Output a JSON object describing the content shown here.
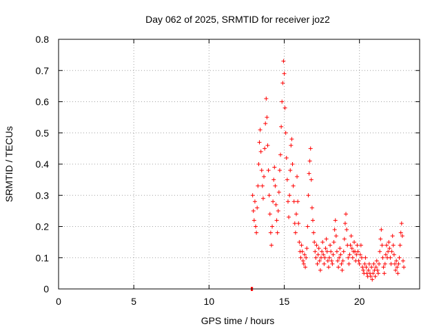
{
  "chart_data": {
    "type": "scatter",
    "title": "Day 062 of 2025, SRMTID for receiver joz2",
    "xlabel": "GPS time / hours",
    "ylabel": "SRMTID / TECUs",
    "xlim": [
      0,
      24
    ],
    "ylim": [
      0,
      0.8
    ],
    "x_ticks": [
      0,
      5,
      10,
      15,
      20
    ],
    "x_tick_labels": [
      "0",
      "5",
      "10",
      "15",
      "20"
    ],
    "y_ticks": [
      0,
      0.1,
      0.2,
      0.3,
      0.4,
      0.5,
      0.6,
      0.7,
      0.8
    ],
    "y_tick_labels": [
      "0",
      "0.1",
      "0.2",
      "0.3",
      "0.4",
      "0.5",
      "0.6",
      "0.7",
      "0.8"
    ],
    "grid": true,
    "marker": "+",
    "colors": {
      "series": "#ff0000",
      "grid": "#a0a0a0",
      "axis": "#000000"
    },
    "series": [
      {
        "name": "SRMTID",
        "points": [
          [
            12.8,
            0.0
          ],
          [
            12.85,
            0.0
          ],
          [
            12.9,
            0.0
          ],
          [
            12.9,
            0.3
          ],
          [
            12.95,
            0.25
          ],
          [
            13.0,
            0.22
          ],
          [
            13.05,
            0.28
          ],
          [
            13.1,
            0.2
          ],
          [
            13.15,
            0.18
          ],
          [
            13.2,
            0.26
          ],
          [
            13.25,
            0.33
          ],
          [
            13.3,
            0.4
          ],
          [
            13.35,
            0.47
          ],
          [
            13.4,
            0.51
          ],
          [
            13.45,
            0.44
          ],
          [
            13.5,
            0.38
          ],
          [
            13.55,
            0.33
          ],
          [
            13.6,
            0.29
          ],
          [
            13.65,
            0.36
          ],
          [
            13.7,
            0.45
          ],
          [
            13.75,
            0.53
          ],
          [
            13.8,
            0.61
          ],
          [
            13.85,
            0.55
          ],
          [
            13.9,
            0.46
          ],
          [
            13.95,
            0.38
          ],
          [
            14.0,
            0.3
          ],
          [
            14.05,
            0.24
          ],
          [
            14.1,
            0.18
          ],
          [
            14.15,
            0.14
          ],
          [
            14.2,
            0.2
          ],
          [
            14.25,
            0.28
          ],
          [
            14.3,
            0.35
          ],
          [
            14.35,
            0.39
          ],
          [
            14.4,
            0.33
          ],
          [
            14.45,
            0.27
          ],
          [
            14.5,
            0.22
          ],
          [
            14.55,
            0.18
          ],
          [
            14.6,
            0.25
          ],
          [
            14.65,
            0.31
          ],
          [
            14.7,
            0.38
          ],
          [
            14.75,
            0.43
          ],
          [
            14.8,
            0.52
          ],
          [
            14.85,
            0.6
          ],
          [
            14.9,
            0.66
          ],
          [
            14.95,
            0.73
          ],
          [
            15.0,
            0.69
          ],
          [
            15.05,
            0.58
          ],
          [
            15.1,
            0.5
          ],
          [
            15.15,
            0.42
          ],
          [
            15.2,
            0.35
          ],
          [
            15.25,
            0.28
          ],
          [
            15.3,
            0.23
          ],
          [
            15.35,
            0.3
          ],
          [
            15.4,
            0.38
          ],
          [
            15.45,
            0.46
          ],
          [
            15.5,
            0.48
          ],
          [
            15.55,
            0.4
          ],
          [
            15.6,
            0.33
          ],
          [
            15.65,
            0.28
          ],
          [
            15.7,
            0.21
          ],
          [
            15.75,
            0.18
          ],
          [
            15.8,
            0.24
          ],
          [
            15.85,
            0.36
          ],
          [
            15.9,
            0.28
          ],
          [
            15.95,
            0.21
          ],
          [
            16.0,
            0.15
          ],
          [
            16.05,
            0.12
          ],
          [
            16.1,
            0.1
          ],
          [
            16.15,
            0.14
          ],
          [
            16.2,
            0.12
          ],
          [
            16.25,
            0.09
          ],
          [
            16.3,
            0.08
          ],
          [
            16.35,
            0.11
          ],
          [
            16.4,
            0.07
          ],
          [
            16.45,
            0.1
          ],
          [
            16.5,
            0.13
          ],
          [
            16.55,
            0.2
          ],
          [
            16.6,
            0.3
          ],
          [
            16.65,
            0.37
          ],
          [
            16.7,
            0.41
          ],
          [
            16.75,
            0.45
          ],
          [
            16.8,
            0.35
          ],
          [
            16.85,
            0.26
          ],
          [
            16.9,
            0.22
          ],
          [
            16.95,
            0.18
          ],
          [
            17.0,
            0.15
          ],
          [
            17.05,
            0.12
          ],
          [
            17.1,
            0.1
          ],
          [
            17.15,
            0.14
          ],
          [
            17.2,
            0.08
          ],
          [
            17.25,
            0.11
          ],
          [
            17.3,
            0.13
          ],
          [
            17.35,
            0.09
          ],
          [
            17.4,
            0.06
          ],
          [
            17.45,
            0.1
          ],
          [
            17.5,
            0.12
          ],
          [
            17.55,
            0.15
          ],
          [
            17.6,
            0.11
          ],
          [
            17.65,
            0.08
          ],
          [
            17.7,
            0.1
          ],
          [
            17.75,
            0.13
          ],
          [
            17.8,
            0.16
          ],
          [
            17.85,
            0.12
          ],
          [
            17.9,
            0.09
          ],
          [
            17.95,
            0.07
          ],
          [
            18.0,
            0.1
          ],
          [
            18.05,
            0.14
          ],
          [
            18.1,
            0.12
          ],
          [
            18.15,
            0.09
          ],
          [
            18.2,
            0.08
          ],
          [
            18.25,
            0.11
          ],
          [
            18.3,
            0.15
          ],
          [
            18.35,
            0.19
          ],
          [
            18.4,
            0.22
          ],
          [
            18.45,
            0.17
          ],
          [
            18.5,
            0.12
          ],
          [
            18.55,
            0.09
          ],
          [
            18.6,
            0.07
          ],
          [
            18.65,
            0.1
          ],
          [
            18.7,
            0.13
          ],
          [
            18.75,
            0.11
          ],
          [
            18.8,
            0.08
          ],
          [
            18.85,
            0.06
          ],
          [
            18.9,
            0.09
          ],
          [
            18.95,
            0.12
          ],
          [
            19.0,
            0.16
          ],
          [
            19.05,
            0.21
          ],
          [
            19.1,
            0.24
          ],
          [
            19.15,
            0.19
          ],
          [
            19.2,
            0.14
          ],
          [
            19.25,
            0.1
          ],
          [
            19.3,
            0.08
          ],
          [
            19.35,
            0.11
          ],
          [
            19.4,
            0.14
          ],
          [
            19.45,
            0.17
          ],
          [
            19.5,
            0.13
          ],
          [
            19.55,
            0.1
          ],
          [
            19.6,
            0.12
          ],
          [
            19.65,
            0.15
          ],
          [
            19.7,
            0.12
          ],
          [
            19.75,
            0.09
          ],
          [
            19.8,
            0.11
          ],
          [
            19.85,
            0.14
          ],
          [
            19.9,
            0.12
          ],
          [
            19.95,
            0.09
          ],
          [
            20.0,
            0.08
          ],
          [
            20.05,
            0.11
          ],
          [
            20.1,
            0.14
          ],
          [
            20.15,
            0.1
          ],
          [
            20.2,
            0.07
          ],
          [
            20.25,
            0.06
          ],
          [
            20.3,
            0.05
          ],
          [
            20.35,
            0.08
          ],
          [
            20.4,
            0.1
          ],
          [
            20.45,
            0.07
          ],
          [
            20.5,
            0.05
          ],
          [
            20.55,
            0.04
          ],
          [
            20.6,
            0.06
          ],
          [
            20.65,
            0.08
          ],
          [
            20.7,
            0.05
          ],
          [
            20.75,
            0.04
          ],
          [
            20.8,
            0.07
          ],
          [
            20.85,
            0.03
          ],
          [
            20.9,
            0.05
          ],
          [
            20.95,
            0.08
          ],
          [
            21.0,
            0.06
          ],
          [
            21.05,
            0.04
          ],
          [
            21.1,
            0.07
          ],
          [
            21.15,
            0.09
          ],
          [
            21.2,
            0.06
          ],
          [
            21.25,
            0.05
          ],
          [
            21.3,
            0.08
          ],
          [
            21.35,
            0.12
          ],
          [
            21.4,
            0.16
          ],
          [
            21.45,
            0.19
          ],
          [
            21.5,
            0.14
          ],
          [
            21.55,
            0.1
          ],
          [
            21.6,
            0.07
          ],
          [
            21.65,
            0.05
          ],
          [
            21.7,
            0.08
          ],
          [
            21.75,
            0.11
          ],
          [
            21.8,
            0.14
          ],
          [
            21.85,
            0.1
          ],
          [
            21.9,
            0.12
          ],
          [
            21.95,
            0.15
          ],
          [
            22.0,
            0.13
          ],
          [
            22.05,
            0.1
          ],
          [
            22.1,
            0.08
          ],
          [
            22.15,
            0.12
          ],
          [
            22.2,
            0.17
          ],
          [
            22.25,
            0.14
          ],
          [
            22.3,
            0.11
          ],
          [
            22.35,
            0.08
          ],
          [
            22.4,
            0.06
          ],
          [
            22.45,
            0.09
          ],
          [
            22.5,
            0.07
          ],
          [
            22.55,
            0.05
          ],
          [
            22.6,
            0.08
          ],
          [
            22.65,
            0.1
          ],
          [
            22.7,
            0.14
          ],
          [
            22.75,
            0.18
          ],
          [
            22.8,
            0.21
          ],
          [
            22.85,
            0.17
          ],
          [
            22.9,
            0.09
          ],
          [
            22.95,
            0.07
          ]
        ]
      }
    ]
  }
}
